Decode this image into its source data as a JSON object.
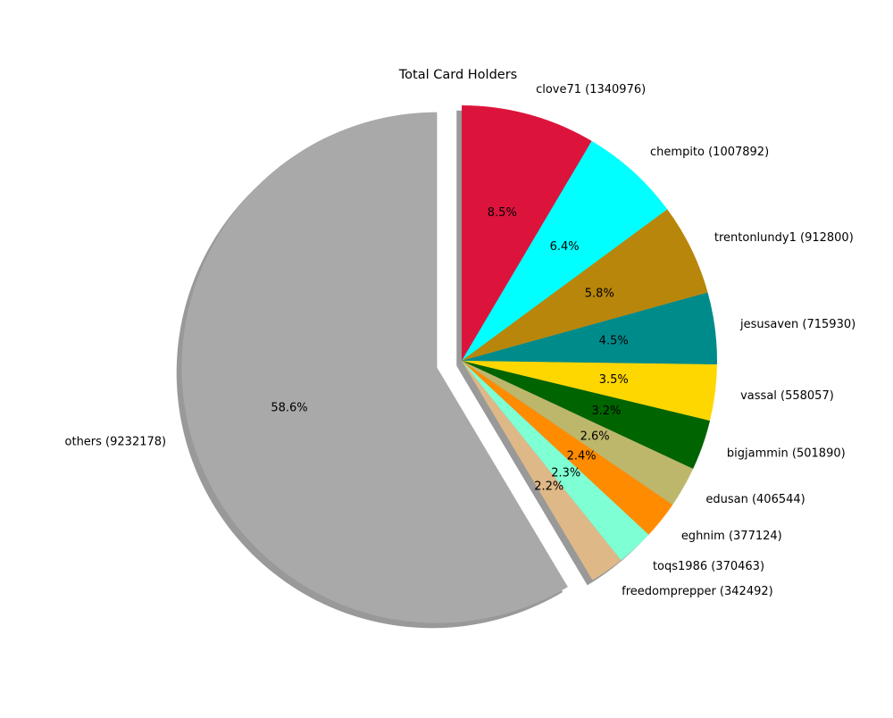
{
  "chart_data": {
    "type": "pie",
    "title": "Total Card Holders",
    "start_angle_deg": 90,
    "direction": "clockwise",
    "shadow": true,
    "slices": [
      {
        "label": "clove71 (1340976)",
        "value": 1340976,
        "pct_label": "8.5%",
        "color": "#dc143c",
        "explode": false
      },
      {
        "label": "chempito (1007892)",
        "value": 1007892,
        "pct_label": "6.4%",
        "color": "#00ffff",
        "explode": false
      },
      {
        "label": "trentonlundy1 (912800)",
        "value": 912800,
        "pct_label": "5.8%",
        "color": "#b8860b",
        "explode": false
      },
      {
        "label": "jesusaven (715930)",
        "value": 715930,
        "pct_label": "4.5%",
        "color": "#008b8b",
        "explode": false
      },
      {
        "label": "vassal (558057)",
        "value": 558057,
        "pct_label": "3.5%",
        "color": "#ffd700",
        "explode": false
      },
      {
        "label": "bigjammin (501890)",
        "value": 501890,
        "pct_label": "3.2%",
        "color": "#006400",
        "explode": false
      },
      {
        "label": "edusan (406544)",
        "value": 406544,
        "pct_label": "2.6%",
        "color": "#bdb76b",
        "explode": false
      },
      {
        "label": "eghnim (377124)",
        "value": 377124,
        "pct_label": "2.4%",
        "color": "#ff8c00",
        "explode": false
      },
      {
        "label": "toqs1986 (370463)",
        "value": 370463,
        "pct_label": "2.3%",
        "color": "#7fffd4",
        "explode": false
      },
      {
        "label": "freedomprepper (342492)",
        "value": 342492,
        "pct_label": "2.2%",
        "color": "#deb887",
        "explode": false
      },
      {
        "label": "others (9232178)",
        "value": 9232178,
        "pct_label": "58.6%",
        "color": "#a9a9a9",
        "explode": true
      }
    ]
  }
}
